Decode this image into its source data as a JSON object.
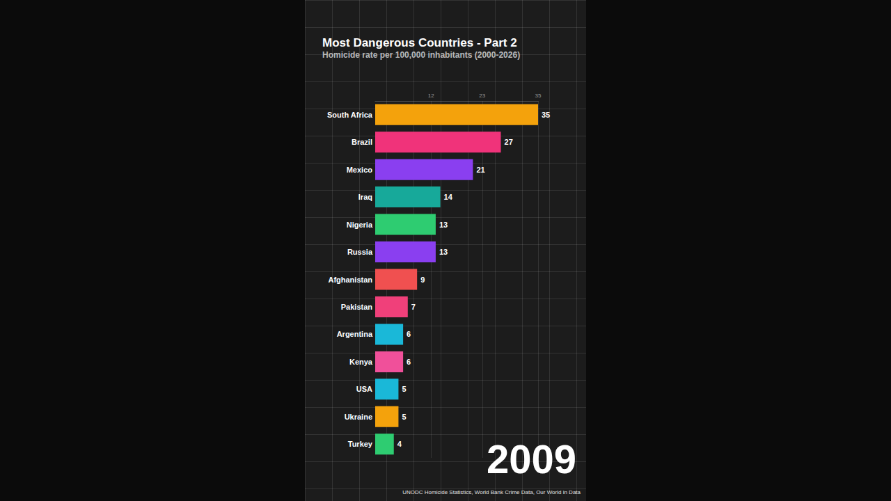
{
  "chart_data": {
    "type": "bar",
    "title": "Most Dangerous Countries - Part 2",
    "subtitle": "Homicide rate per 100,000 inhabitants (2000-2026)",
    "orientation": "horizontal",
    "categories": [
      "South Africa",
      "Brazil",
      "Mexico",
      "Iraq",
      "Nigeria",
      "Russia",
      "Afghanistan",
      "Pakistan",
      "Argentina",
      "Kenya",
      "USA",
      "Ukraine",
      "Turkey"
    ],
    "values": [
      35,
      27,
      21,
      14,
      13,
      13,
      9,
      7,
      6,
      6,
      5,
      5,
      4
    ],
    "colors": [
      "#f4a20c",
      "#f0337a",
      "#8a3ff0",
      "#17a99a",
      "#2ecc71",
      "#8a3ff0",
      "#f05050",
      "#f0407a",
      "#1ab8d8",
      "#f0509a",
      "#1ab8d8",
      "#f4a20c",
      "#2ecc71"
    ],
    "xlim": [
      0,
      35
    ],
    "xticks": [
      12,
      23,
      35
    ],
    "grid": true,
    "data_labels": true,
    "annotation": "2009",
    "source": "UNODC Homicide Statistics, World Bank Crime Data, Our World in Data"
  }
}
